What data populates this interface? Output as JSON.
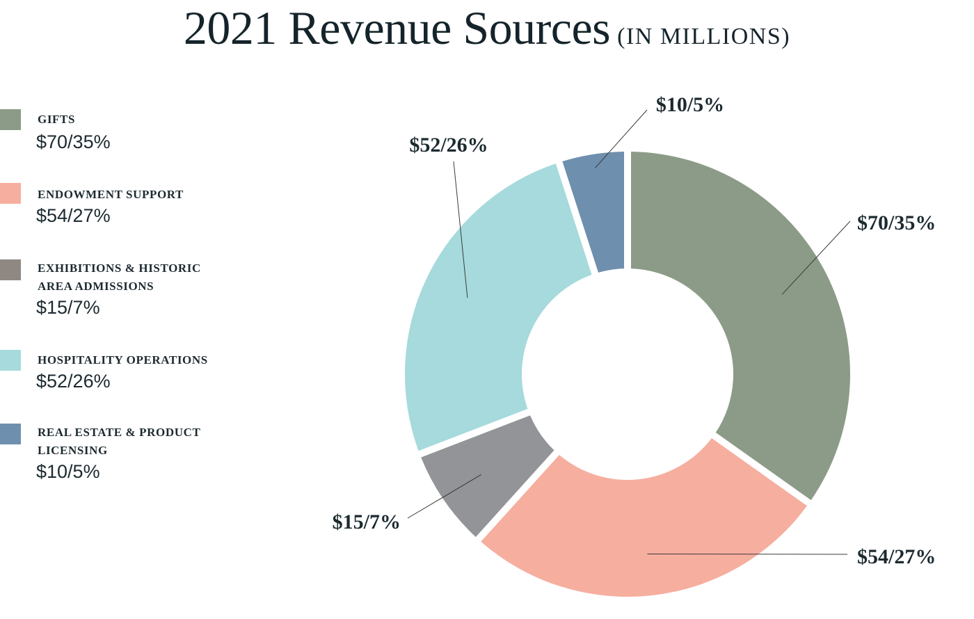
{
  "title": {
    "main": "2021 Revenue Sources",
    "sub": "(IN MILLIONS)"
  },
  "colors": {
    "gifts": "#8c9b87",
    "endowment": "#f6ae9f",
    "exhibitions": "#939497",
    "exhibitions_swatch": "#8f8882",
    "hospitality": "#a6dadc",
    "real_estate": "#6f8fae"
  },
  "legend": [
    {
      "label": "GIFTS",
      "value": "$70/35%"
    },
    {
      "label": "ENDOWMENT SUPPORT",
      "value": "$54/27%"
    },
    {
      "label": "EXHIBITIONS & HISTORIC AREA ADMISSIONS",
      "value": "$15/7%"
    },
    {
      "label": "HOSPITALITY OPERATIONS",
      "value": "$52/26%"
    },
    {
      "label": "REAL ESTATE & PRODUCT LICENSING",
      "value": "$10/5%"
    }
  ],
  "chart_data": {
    "type": "pie",
    "style": "donut",
    "title": "2021 Revenue Sources (IN MILLIONS)",
    "categories": [
      "GIFTS",
      "ENDOWMENT SUPPORT",
      "EXHIBITIONS & HISTORIC AREA ADMISSIONS",
      "HOSPITALITY OPERATIONS",
      "REAL ESTATE & PRODUCT LICENSING"
    ],
    "values": [
      70,
      54,
      15,
      52,
      10
    ],
    "percentages": [
      35,
      27,
      7,
      26,
      5
    ],
    "labels": [
      "$70/35%",
      "$54/27%",
      "$15/7%",
      "$52/26%",
      "$10/5%"
    ],
    "legend_position": "left",
    "colors": [
      "#8c9b87",
      "#f6ae9f",
      "#939497",
      "#a6dadc",
      "#6f8fae"
    ]
  }
}
